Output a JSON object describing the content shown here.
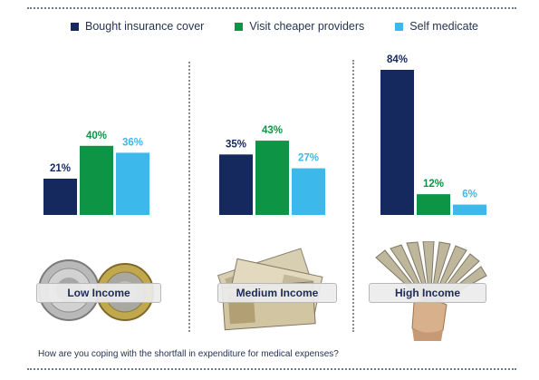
{
  "chart_data": {
    "type": "bar",
    "categories": [
      "Low Income",
      "Medium Income",
      "High Income"
    ],
    "series": [
      {
        "name": "Bought insurance cover",
        "values": [
          21,
          35,
          84
        ],
        "labels": [
          "21%",
          "35%",
          "84%"
        ]
      },
      {
        "name": "Visit cheaper providers",
        "values": [
          40,
          43,
          12
        ],
        "labels": [
          "40%",
          "43%",
          "12%"
        ]
      },
      {
        "name": "Self medicate",
        "values": [
          36,
          27,
          6
        ],
        "labels": [
          "36%",
          "27%",
          "6%"
        ]
      }
    ],
    "colors": [
      "#15295e",
      "#0d9444",
      "#3db8ea"
    ],
    "ylim": [
      0,
      90
    ],
    "legend_position": "top",
    "grid": false
  },
  "question": "How are you coping with the shortfall in expenditure for medical expenses?",
  "illustrations": [
    "coins-image",
    "banknotes-image",
    "cash-in-hand-image"
  ]
}
